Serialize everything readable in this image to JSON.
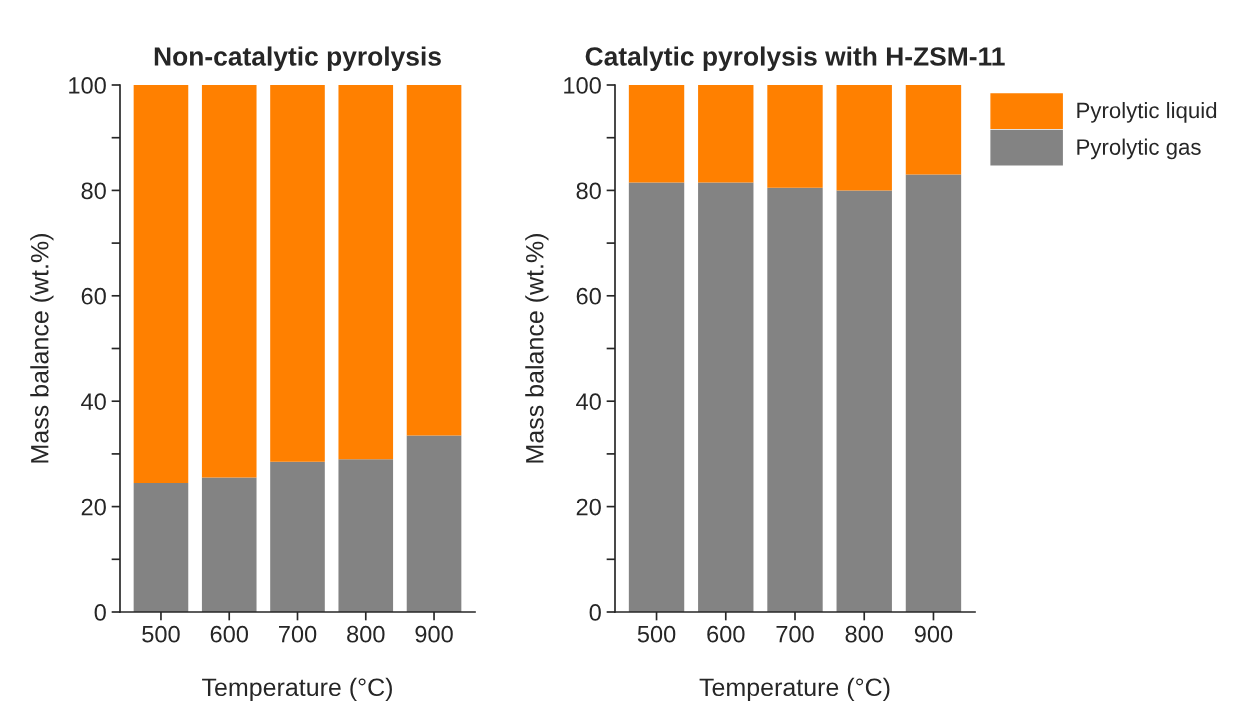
{
  "chart_data": [
    {
      "type": "bar",
      "title": "Non-catalytic pyrolysis",
      "xlabel": "Temperature (°C)",
      "ylabel": "Mass balance (wt.%)",
      "categories": [
        "500",
        "600",
        "700",
        "800",
        "900"
      ],
      "stacked": true,
      "series": [
        {
          "color": "#838383",
          "values": [
            24.5,
            25.5,
            28.5,
            29,
            33.5
          ]
        },
        {
          "color": "#ff8000",
          "values": [
            75.5,
            74.5,
            71.5,
            71,
            66.5
          ]
        }
      ],
      "ylim": [
        0,
        100
      ],
      "yticks": [
        0,
        {
          "value": 10,
          "label": null
        },
        20,
        {
          "value": 30,
          "label": null
        },
        40,
        {
          "value": 50,
          "label": null
        },
        60,
        {
          "value": 70,
          "label": null
        },
        80,
        {
          "value": 90,
          "label": null
        },
        100
      ]
    },
    {
      "type": "bar",
      "title": "Catalytic pyrolysis with H-ZSM-11",
      "xlabel": "Temperature (°C)",
      "ylabel": "Mass balance (wt.%)",
      "categories": [
        "500",
        "600",
        "700",
        "800",
        "900"
      ],
      "stacked": true,
      "series": [
        {
          "name": "Pyrolytic gas",
          "color": "#838383",
          "values": [
            81.5,
            81.5,
            80.5,
            80,
            83
          ]
        },
        {
          "name": "Pyrolytic liquid",
          "color": "#ff8000",
          "values": [
            18.5,
            18.5,
            19.5,
            20,
            17
          ]
        }
      ],
      "ylim": [
        0,
        100
      ],
      "yticks": [
        0,
        {
          "value": 10,
          "label": null
        },
        20,
        {
          "value": 30,
          "label": null
        },
        40,
        {
          "value": 50,
          "label": null
        },
        60,
        {
          "value": 70,
          "label": null
        },
        80,
        {
          "value": 90,
          "label": null
        },
        100
      ],
      "legend": "top right"
    }
  ]
}
